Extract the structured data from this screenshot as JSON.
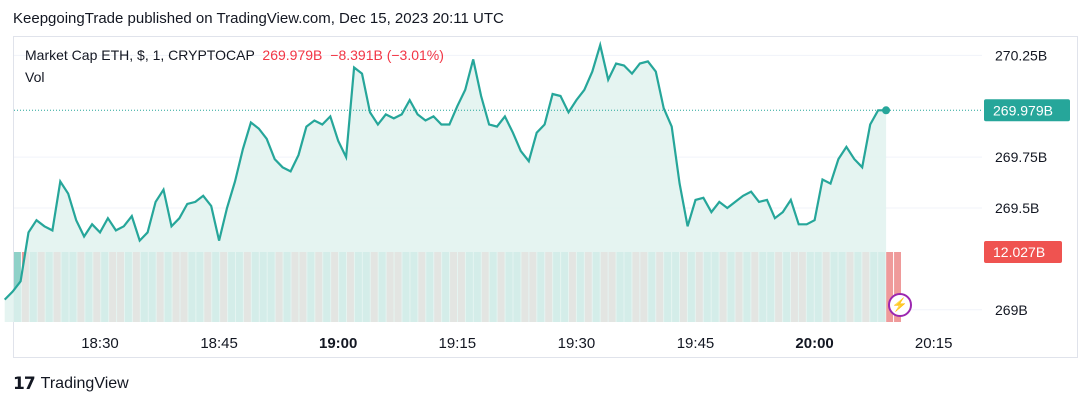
{
  "publisher_line": "KeepgoingTrade published on TradingView.com, Dec 15, 2023 20:11 UTC",
  "legend": {
    "symbol": "Market Cap ETH, $, 1, CRYPTOCAP",
    "price": "269.979B",
    "change": "−8.391B (−3.01%)",
    "volume_label": "Vol"
  },
  "footer": {
    "brand": "TradingView"
  },
  "colors": {
    "line": "#26a69a",
    "area": "#e0f2ef",
    "up_vol": "#8fd1c8",
    "down_vol": "#ef9a9a",
    "price_label": "#26a69a",
    "volume_label": "#ef5350"
  },
  "chart_data": {
    "type": "area",
    "y_unit": "B",
    "ylim": [
      268.94,
      270.34
    ],
    "y_ticks": [
      "270.25B",
      "269.75B",
      "269.5B",
      "269B"
    ],
    "y_tick_values": [
      270.25,
      269.75,
      269.5,
      269.0
    ],
    "x_ticks": [
      "18:30",
      "18:45",
      "19:00",
      "19:15",
      "19:30",
      "19:45",
      "20:00",
      "20:15"
    ],
    "x_tick_minutes": [
      30,
      45,
      60,
      75,
      90,
      105,
      120,
      135
    ],
    "x_tick_bold": [
      false,
      false,
      true,
      false,
      false,
      false,
      true,
      false
    ],
    "series": [
      {
        "type": "line",
        "minutes": [
          18,
          19,
          20,
          21,
          22,
          23,
          24,
          25,
          26,
          27,
          28,
          29,
          30,
          31,
          32,
          33,
          34,
          35,
          36,
          37,
          38,
          39,
          40,
          41,
          42,
          43,
          44,
          45,
          46,
          47,
          48,
          49,
          50,
          51,
          52,
          53,
          54,
          55,
          56,
          57,
          58,
          59,
          60,
          61,
          62,
          63,
          64,
          65,
          66,
          67,
          68,
          69,
          70,
          71,
          72,
          73,
          74,
          75,
          76,
          77,
          78,
          79,
          80,
          81,
          82,
          83,
          84,
          85,
          86,
          87,
          88,
          89,
          90,
          91,
          92,
          93,
          94,
          95,
          96,
          97,
          98,
          99,
          100,
          101,
          102,
          103,
          104,
          105,
          106,
          107,
          108,
          109,
          110,
          111,
          112,
          113,
          114,
          115,
          116,
          117,
          118,
          119,
          120,
          121,
          122,
          123,
          124,
          125,
          126,
          127,
          128,
          129
        ],
        "values": [
          269.05,
          269.09,
          269.14,
          269.38,
          269.44,
          269.41,
          269.39,
          269.63,
          269.57,
          269.44,
          269.36,
          269.42,
          269.38,
          269.45,
          269.39,
          269.41,
          269.46,
          269.34,
          269.38,
          269.53,
          269.59,
          269.41,
          269.45,
          269.52,
          269.53,
          269.56,
          269.51,
          269.34,
          269.5,
          269.63,
          269.79,
          269.92,
          269.89,
          269.84,
          269.74,
          269.7,
          269.68,
          269.76,
          269.9,
          269.93,
          269.91,
          269.95,
          269.83,
          269.75,
          270.19,
          270.16,
          269.97,
          269.91,
          269.96,
          269.94,
          269.96,
          270.03,
          269.96,
          269.93,
          269.95,
          269.91,
          269.91,
          270.0,
          270.08,
          270.23,
          270.05,
          269.91,
          269.9,
          269.95,
          269.87,
          269.78,
          269.73,
          269.87,
          269.91,
          270.06,
          270.05,
          269.97,
          270.03,
          270.08,
          270.17,
          270.3,
          270.13,
          270.21,
          270.2,
          270.16,
          270.21,
          270.22,
          270.17,
          269.99,
          269.9,
          269.62,
          269.41,
          269.54,
          269.55,
          269.48,
          269.53,
          269.5,
          269.53,
          269.56,
          269.58,
          269.53,
          269.54,
          269.45,
          269.48,
          269.54,
          269.42,
          269.42,
          269.44,
          269.64,
          269.62,
          269.74,
          269.8,
          269.74,
          269.7,
          269.91,
          269.98,
          269.98
        ]
      }
    ],
    "volume_colors": [
      "u",
      "d",
      "u",
      "d",
      "u",
      "d",
      "u",
      "u",
      "d",
      "u",
      "d",
      "u",
      "d",
      "d",
      "u",
      "d",
      "u",
      "u",
      "d",
      "u",
      "d",
      "d",
      "u",
      "u",
      "d",
      "u",
      "d",
      "u",
      "u",
      "d",
      "u",
      "u",
      "u",
      "d",
      "u",
      "d",
      "d",
      "u",
      "d",
      "u",
      "d",
      "u",
      "d",
      "u",
      "u",
      "d",
      "u",
      "d",
      "d",
      "u",
      "u",
      "d",
      "u",
      "d",
      "u",
      "d",
      "d",
      "u",
      "u",
      "d",
      "u",
      "d",
      "u",
      "u",
      "d",
      "d",
      "u",
      "d",
      "u",
      "u",
      "d",
      "u",
      "d",
      "u",
      "d",
      "d",
      "u",
      "u",
      "d",
      "d",
      "u",
      "d",
      "u",
      "u",
      "d",
      "u",
      "d",
      "u",
      "u",
      "d",
      "u",
      "d",
      "u",
      "d",
      "u",
      "u",
      "d",
      "u",
      "d",
      "d",
      "u",
      "u",
      "d",
      "u",
      "u",
      "d",
      "u",
      "d",
      "u",
      "u",
      "d",
      "d"
    ],
    "last_price_label": "269.979B",
    "volume_value_label": "12.027B",
    "grid": true
  }
}
